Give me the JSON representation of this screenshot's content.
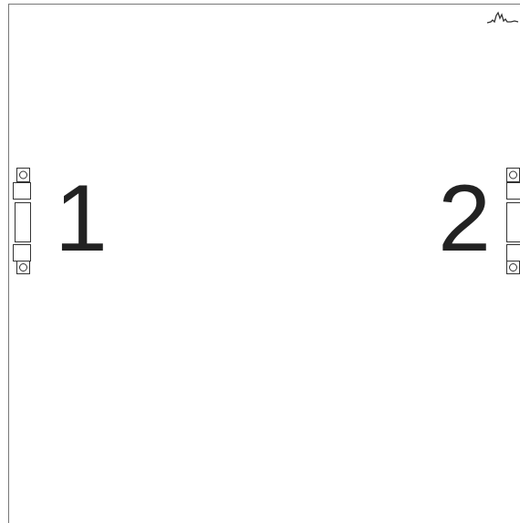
{
  "ports": [
    {
      "label": "1"
    },
    {
      "label": "2"
    }
  ]
}
